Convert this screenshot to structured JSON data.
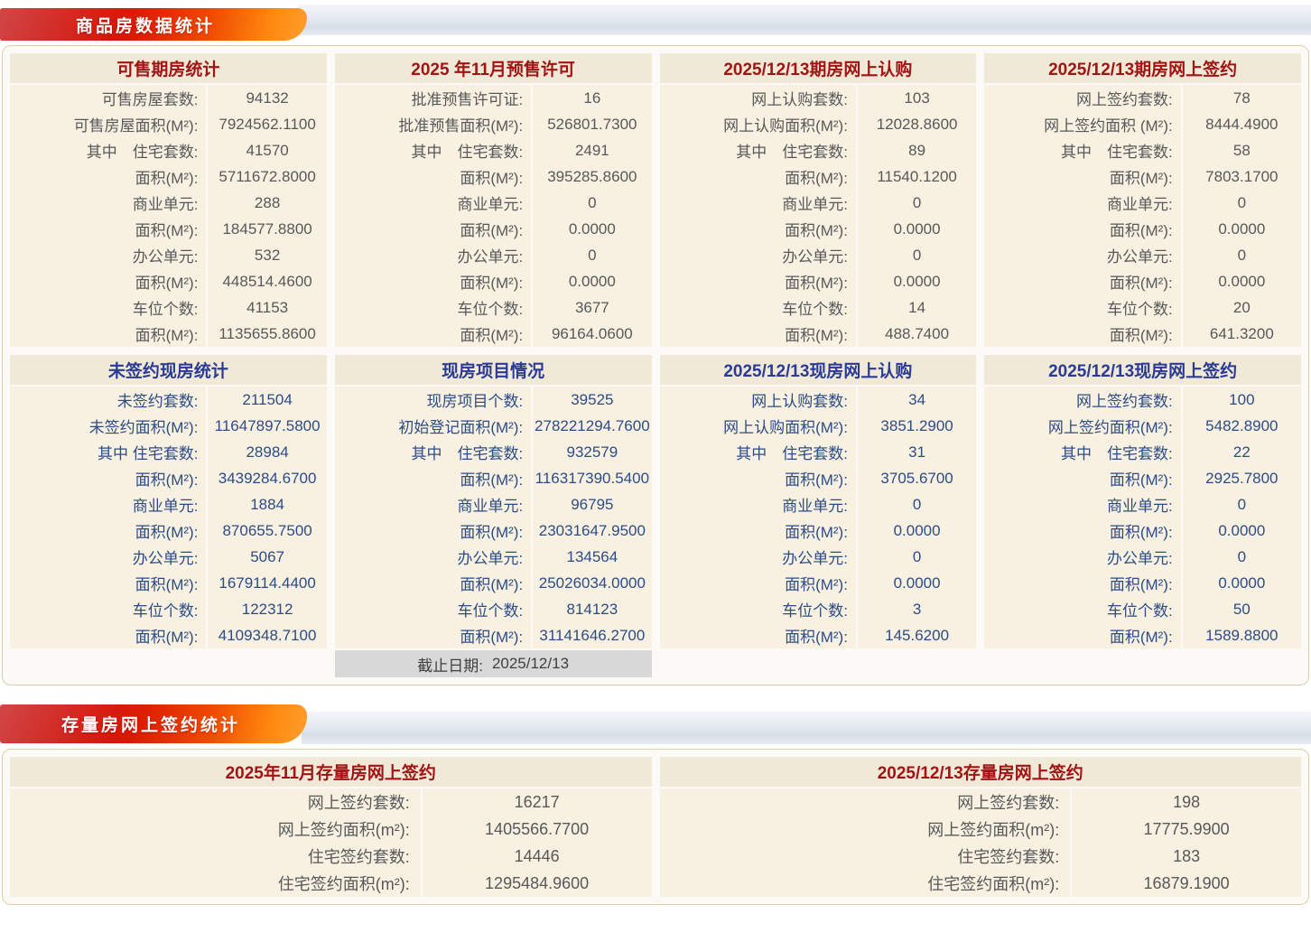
{
  "page": {
    "section1_banner": "商品房数据统计",
    "section2_banner": "存量房网上签约统计"
  },
  "colors": {
    "banner_red_start": "#c00000",
    "banner_orange_end": "#ff9d2e",
    "banner_silver": "#dde3ea",
    "panel_border": "#e0cda6",
    "row_background": "#f8f1e1",
    "header_background": "#f1e9d8",
    "red_header_text": "#a21414",
    "blue_header_text": "#2b3a94",
    "gray_data_text": "#57585a",
    "blue_data_text": "#2c4c86",
    "cutoff_row_background": "#d8d8d8"
  },
  "tables": [
    {
      "title": "可售期房统计",
      "rows": [
        {
          "label": "可售房屋套数:",
          "value": "94132"
        },
        {
          "label": "可售房屋面积(M²):",
          "value": "7924562.1100"
        },
        {
          "label": "其中　住宅套数:",
          "value": "41570"
        },
        {
          "label": "面积(M²):",
          "value": "5711672.8000"
        },
        {
          "label": "商业单元:",
          "value": "288"
        },
        {
          "label": "面积(M²):",
          "value": "184577.8800"
        },
        {
          "label": "办公单元:",
          "value": "532"
        },
        {
          "label": "面积(M²):",
          "value": "448514.4600"
        },
        {
          "label": "车位个数:",
          "value": "41153"
        },
        {
          "label": "面积(M²):",
          "value": "1135655.8600"
        }
      ]
    },
    {
      "title": "2025 年11月预售许可",
      "rows": [
        {
          "label": "批准预售许可证:",
          "value": "16"
        },
        {
          "label": "批准预售面积(M²):",
          "value": "526801.7300"
        },
        {
          "label": "其中　住宅套数:",
          "value": "2491"
        },
        {
          "label": "面积(M²):",
          "value": "395285.8600"
        },
        {
          "label": "商业单元:",
          "value": "0"
        },
        {
          "label": "面积(M²):",
          "value": "0.0000"
        },
        {
          "label": "办公单元:",
          "value": "0"
        },
        {
          "label": "面积(M²):",
          "value": "0.0000"
        },
        {
          "label": "车位个数:",
          "value": "3677"
        },
        {
          "label": "面积(M²):",
          "value": "96164.0600"
        }
      ]
    },
    {
      "title": "2025/12/13期房网上认购",
      "rows": [
        {
          "label": "网上认购套数:",
          "value": "103"
        },
        {
          "label": "网上认购面积(M²):",
          "value": "12028.8600"
        },
        {
          "label": "其中　住宅套数:",
          "value": "89"
        },
        {
          "label": "面积(M²):",
          "value": "11540.1200"
        },
        {
          "label": "商业单元:",
          "value": "0"
        },
        {
          "label": "面积(M²):",
          "value": "0.0000"
        },
        {
          "label": "办公单元:",
          "value": "0"
        },
        {
          "label": "面积(M²):",
          "value": "0.0000"
        },
        {
          "label": "车位个数:",
          "value": "14"
        },
        {
          "label": "面积(M²):",
          "value": "488.7400"
        }
      ]
    },
    {
      "title": "2025/12/13期房网上签约",
      "rows": [
        {
          "label": "网上签约套数:",
          "value": "78"
        },
        {
          "label": "网上签约面积 (M²):",
          "value": "8444.4900"
        },
        {
          "label": "其中　住宅套数:",
          "value": "58"
        },
        {
          "label": "面积(M²):",
          "value": "7803.1700"
        },
        {
          "label": "商业单元:",
          "value": "0"
        },
        {
          "label": "面积(M²):",
          "value": "0.0000"
        },
        {
          "label": "办公单元:",
          "value": "0"
        },
        {
          "label": "面积(M²):",
          "value": "0.0000"
        },
        {
          "label": "车位个数:",
          "value": "20"
        },
        {
          "label": "面积(M²):",
          "value": "641.3200"
        }
      ]
    },
    {
      "title": "未签约现房统计",
      "rows": [
        {
          "label": "未签约套数:",
          "value": "211504"
        },
        {
          "label": "未签约面积(M²):",
          "value": "11647897.5800"
        },
        {
          "label": "其中 住宅套数:",
          "value": "28984"
        },
        {
          "label": "面积(M²):",
          "value": "3439284.6700"
        },
        {
          "label": "商业单元:",
          "value": "1884"
        },
        {
          "label": "面积(M²):",
          "value": "870655.7500"
        },
        {
          "label": "办公单元:",
          "value": "5067"
        },
        {
          "label": "面积(M²):",
          "value": "1679114.4400"
        },
        {
          "label": "车位个数:",
          "value": "122312"
        },
        {
          "label": "面积(M²):",
          "value": "4109348.7100"
        }
      ]
    },
    {
      "title": "现房项目情况",
      "rows": [
        {
          "label": "现房项目个数:",
          "value": "39525"
        },
        {
          "label": "初始登记面积(M²):",
          "value": "278221294.7600"
        },
        {
          "label": "其中　住宅套数:",
          "value": "932579"
        },
        {
          "label": "面积(M²):",
          "value": "116317390.5400"
        },
        {
          "label": "商业单元:",
          "value": "96795"
        },
        {
          "label": "面积(M²):",
          "value": "23031647.9500"
        },
        {
          "label": "办公单元:",
          "value": "134564"
        },
        {
          "label": "面积(M²):",
          "value": "25026034.0000"
        },
        {
          "label": "车位个数:",
          "value": "814123"
        },
        {
          "label": "面积(M²):",
          "value": "31141646.2700"
        }
      ],
      "footer_label": "截止日期:",
      "footer_value": "2025/12/13"
    },
    {
      "title": "2025/12/13现房网上认购",
      "rows": [
        {
          "label": "网上认购套数:",
          "value": "34"
        },
        {
          "label": "网上认购面积(M²):",
          "value": "3851.2900"
        },
        {
          "label": "其中　住宅套数:",
          "value": "31"
        },
        {
          "label": "面积(M²):",
          "value": "3705.6700"
        },
        {
          "label": "商业单元:",
          "value": "0"
        },
        {
          "label": "面积(M²):",
          "value": "0.0000"
        },
        {
          "label": "办公单元:",
          "value": "0"
        },
        {
          "label": "面积(M²):",
          "value": "0.0000"
        },
        {
          "label": "车位个数:",
          "value": "3"
        },
        {
          "label": "面积(M²):",
          "value": "145.6200"
        }
      ]
    },
    {
      "title": "2025/12/13现房网上签约",
      "rows": [
        {
          "label": "网上签约套数:",
          "value": "100"
        },
        {
          "label": "网上签约面积(M²):",
          "value": "5482.8900"
        },
        {
          "label": "其中　住宅套数:",
          "value": "22"
        },
        {
          "label": "面积(M²):",
          "value": "2925.7800"
        },
        {
          "label": "商业单元:",
          "value": "0"
        },
        {
          "label": "面积(M²):",
          "value": "0.0000"
        },
        {
          "label": "办公单元:",
          "value": "0"
        },
        {
          "label": "面积(M²):",
          "value": "0.0000"
        },
        {
          "label": "车位个数:",
          "value": "50"
        },
        {
          "label": "面积(M²):",
          "value": "1589.8800"
        }
      ]
    }
  ],
  "bottom_tables": [
    {
      "title": "2025年11月存量房网上签约",
      "rows": [
        {
          "label": "网上签约套数:",
          "value": "16217"
        },
        {
          "label": "网上签约面积(m²):",
          "value": "1405566.7700"
        },
        {
          "label": "住宅签约套数:",
          "value": "14446"
        },
        {
          "label": "住宅签约面积(m²):",
          "value": "1295484.9600"
        }
      ]
    },
    {
      "title": "2025/12/13存量房网上签约",
      "rows": [
        {
          "label": "网上签约套数:",
          "value": "198"
        },
        {
          "label": "网上签约面积(m²):",
          "value": "17775.9900"
        },
        {
          "label": "住宅签约套数:",
          "value": "183"
        },
        {
          "label": "住宅签约面积(m²):",
          "value": "16879.1900"
        }
      ]
    }
  ]
}
